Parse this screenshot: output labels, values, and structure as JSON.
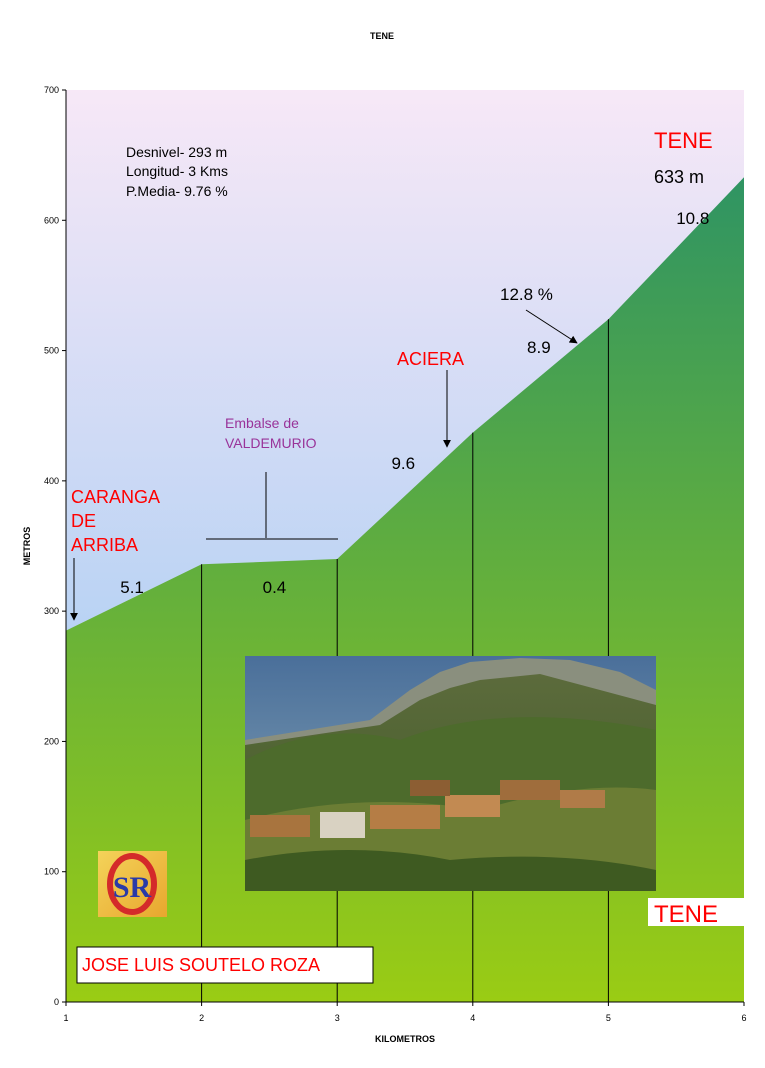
{
  "chart_data": {
    "type": "area",
    "title": "TENE",
    "xlabel": "KILOMETROS",
    "ylabel": "METROS",
    "xlim": [
      1,
      6
    ],
    "ylim": [
      0,
      700
    ],
    "x_ticks": [
      "1",
      "2",
      "3",
      "4",
      "5",
      "6"
    ],
    "y_ticks": [
      "0",
      "100",
      "200",
      "300",
      "400",
      "500",
      "600",
      "700"
    ],
    "x": [
      1,
      2,
      3,
      4,
      5,
      6
    ],
    "y": [
      285,
      336,
      340,
      437,
      524,
      633
    ],
    "segment_gradients": [
      {
        "x": 1.4,
        "label": "5.1"
      },
      {
        "x": 2.45,
        "label": "0.4"
      },
      {
        "x": 3.4,
        "label": "9.6"
      },
      {
        "x": 4.4,
        "label": "8.9"
      },
      {
        "x": 5.5,
        "label": "10.8"
      }
    ],
    "stats": [
      "Desnivel- 293 m",
      "Longitud- 3 Kms",
      "P.Media- 9.76 %"
    ],
    "annotations": {
      "start": {
        "lines": [
          "CARANGA",
          "DE",
          "ARRIBA"
        ]
      },
      "reservoir": {
        "lines": [
          "Embalse de",
          "VALDEMURIO"
        ]
      },
      "aciera": "ACIERA",
      "max_grade": "12.8 %",
      "summit": "TENE",
      "summit_altitude": "633 m",
      "author": "JOSE LUIS SOUTELO ROZA",
      "photo_caption": "TENE",
      "logo_letters": "SR"
    },
    "colors": {
      "sky_top": "#f7e8f7",
      "sky_bottom": "#8ec4f2",
      "ground_top": "#2f9463",
      "ground_bottom": "#9acc14",
      "place_label": "#ff0000",
      "reservoir_label": "#993399"
    },
    "grid": false
  }
}
